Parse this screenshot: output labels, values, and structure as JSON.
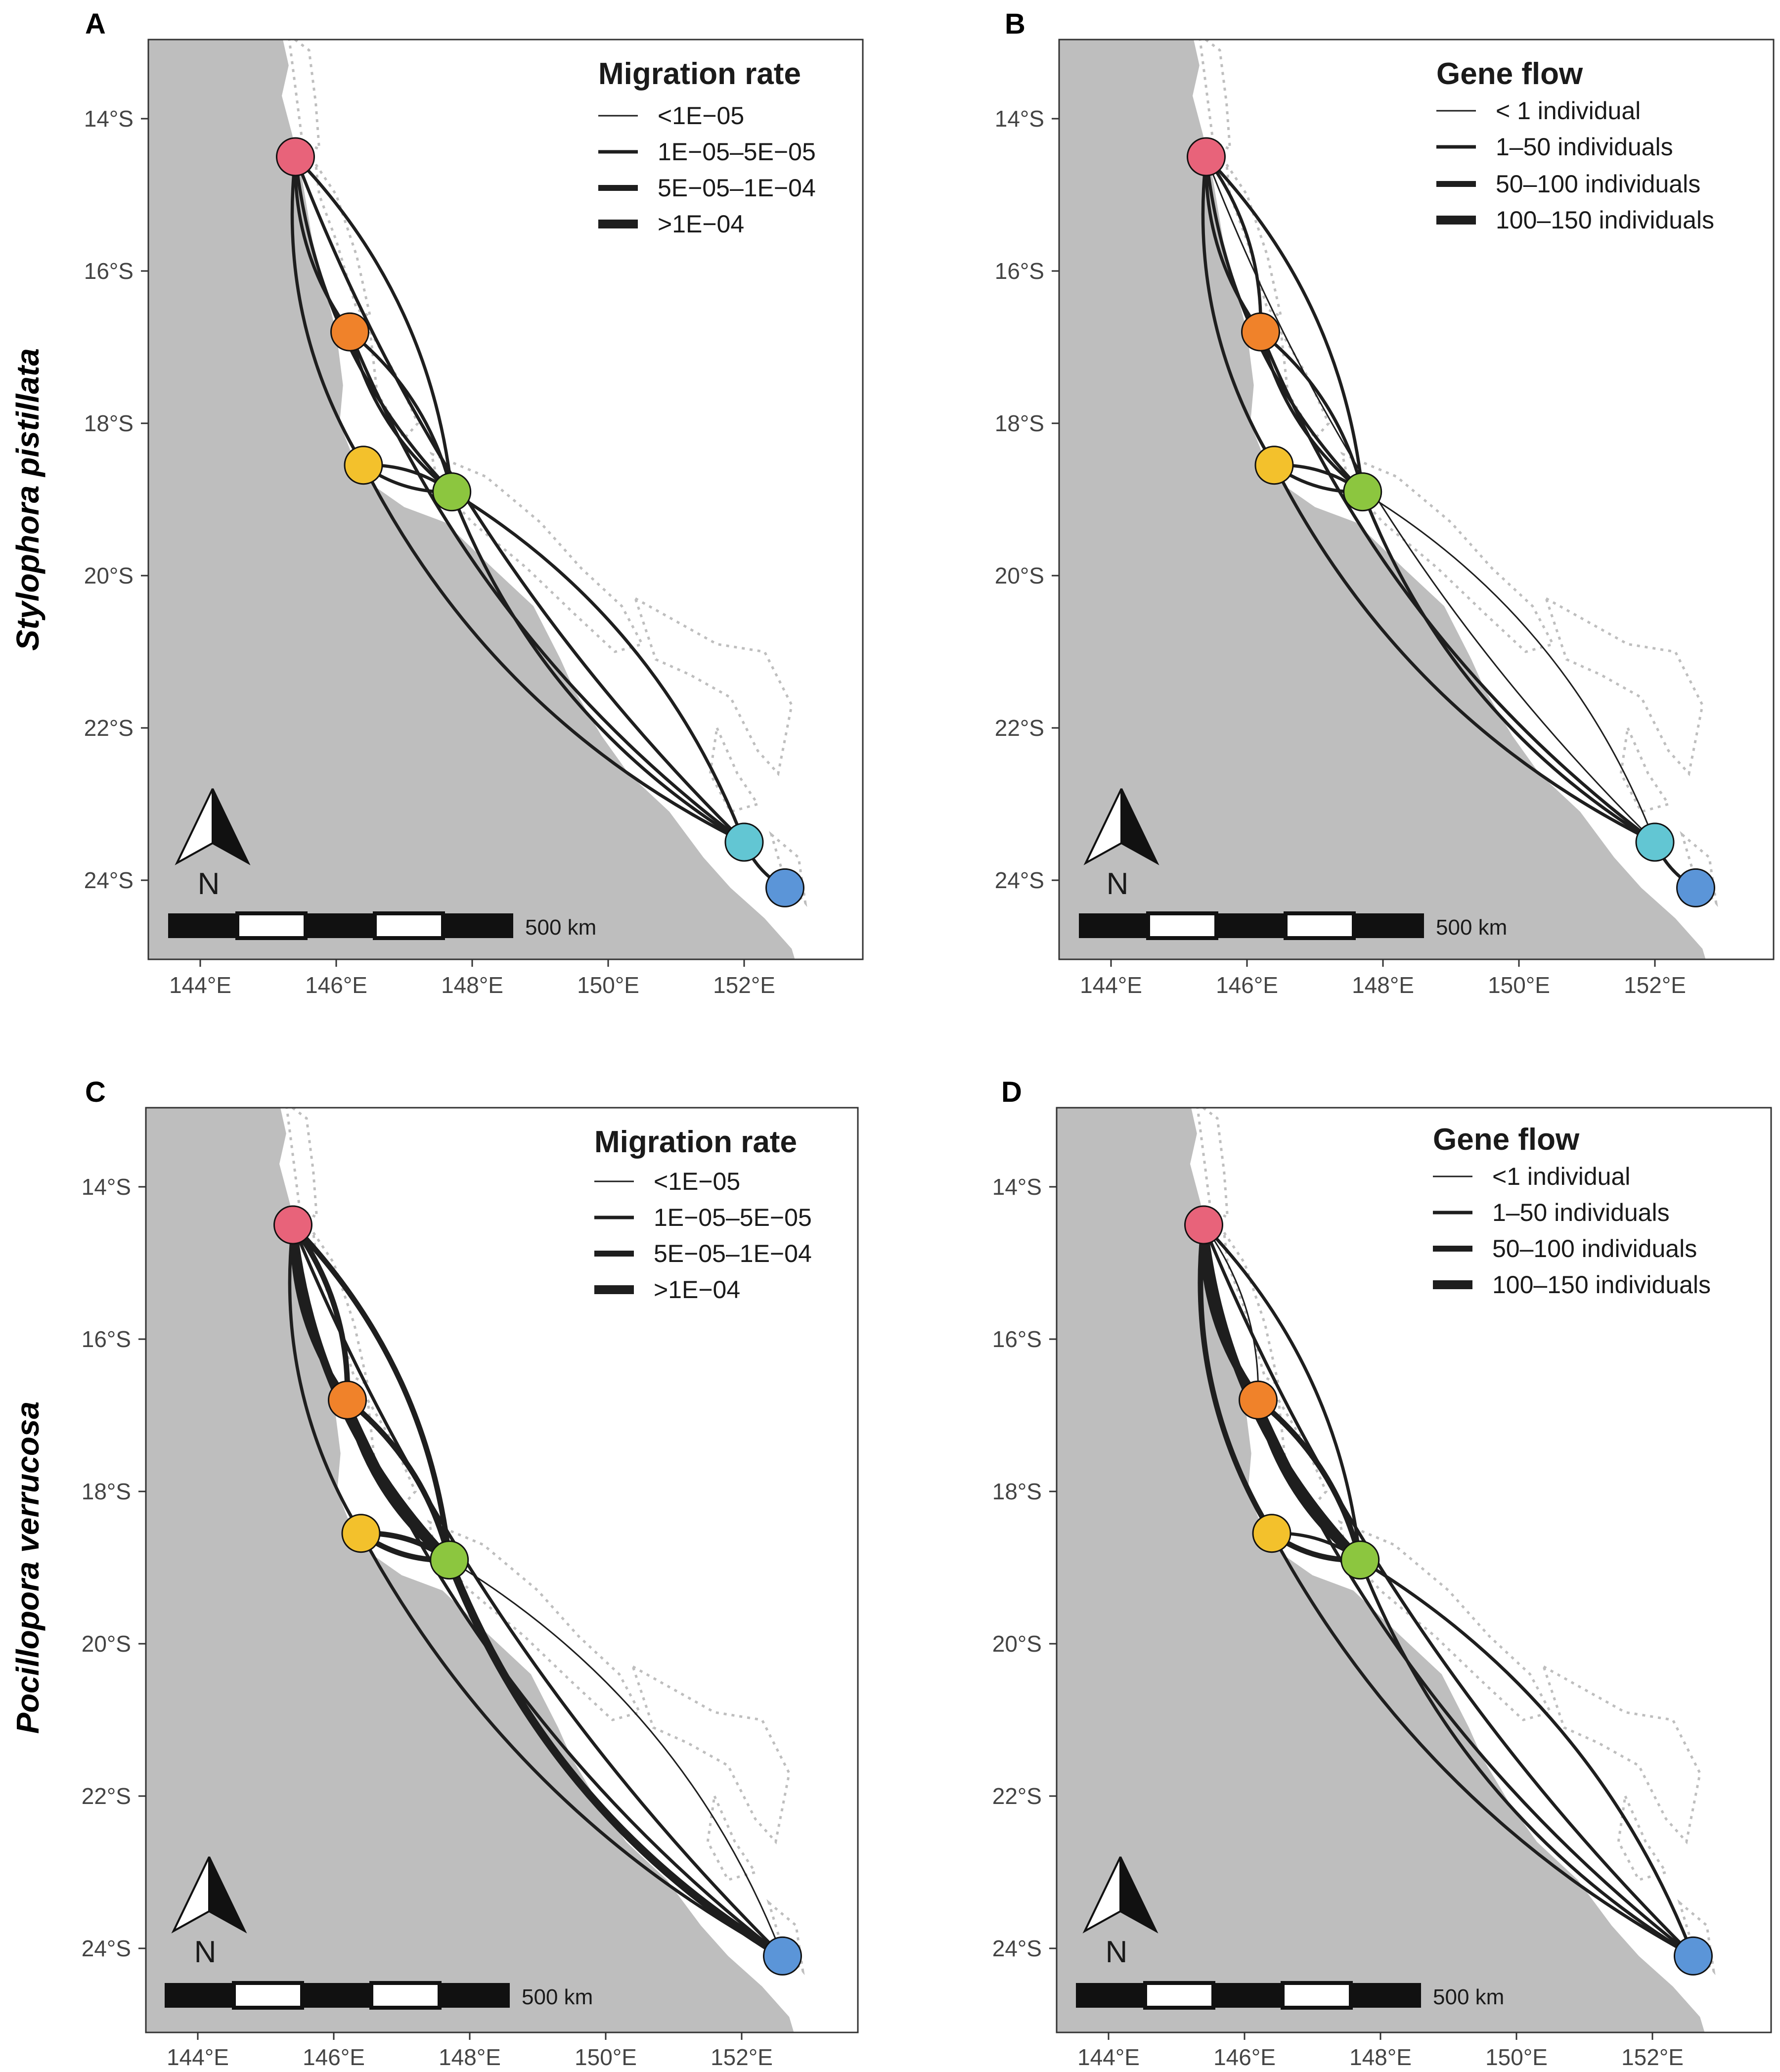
{
  "row_labels": [
    "Stylophora pistillata",
    "Pocillopora verrucosa"
  ],
  "panels": [
    {
      "letter": "A",
      "legend_title": "Migration rate",
      "legend_items": [
        "<1E−05",
        "1E−05–5E−05",
        "5E−05–1E−04",
        ">1E−04"
      ]
    },
    {
      "letter": "B",
      "legend_title": "Gene flow",
      "legend_items": [
        "< 1 individual",
        "1–50 individuals",
        "50–100 individuals",
        "100–150 individuals"
      ]
    },
    {
      "letter": "C",
      "legend_title": "Migration rate",
      "legend_items": [
        "<1E−05",
        "1E−05–5E−05",
        "5E−05–1E−04",
        ">1E−04"
      ]
    },
    {
      "letter": "D",
      "legend_title": "Gene flow",
      "legend_items": [
        "<1 individual",
        "1–50 individuals",
        "50–100 individuals",
        "100–150 individuals"
      ]
    }
  ],
  "x_ticks": [
    "144°E",
    "146°E",
    "148°E",
    "150°E",
    "152°E"
  ],
  "y_ticks": [
    "14°S",
    "16°S",
    "18°S",
    "20°S",
    "22°S",
    "24°S"
  ],
  "scale_label": "500 km",
  "north_label": "N",
  "colors": {
    "land": "#bebebe",
    "reef": "#bebebe",
    "edge": "#1e1e1e"
  },
  "sites": [
    {
      "id": "pink",
      "lon": 145.4,
      "lat": 14.5,
      "color": "#e8637a"
    },
    {
      "id": "orange",
      "lon": 146.2,
      "lat": 16.8,
      "color": "#f0822a"
    },
    {
      "id": "yellow",
      "lon": 146.4,
      "lat": 18.55,
      "color": "#f3c12c"
    },
    {
      "id": "green",
      "lon": 147.7,
      "lat": 18.9,
      "color": "#8cc63f"
    },
    {
      "id": "cyan",
      "lon": 152.0,
      "lat": 23.5,
      "color": "#62c6d3"
    },
    {
      "id": "blue",
      "lon": 152.6,
      "lat": 24.1,
      "color": "#5b95d8"
    }
  ],
  "connections": [
    {
      "panel": "A",
      "pairs": [
        [
          "pink",
          "orange",
          2,
          1
        ],
        [
          "pink",
          "yellow",
          2,
          1
        ],
        [
          "pink",
          "green",
          2,
          1
        ],
        [
          "pink",
          "green",
          2,
          -1
        ],
        [
          "pink",
          "cyan",
          2,
          1
        ],
        [
          "orange",
          "green",
          2,
          1
        ],
        [
          "orange",
          "green",
          2,
          -1
        ],
        [
          "orange",
          "cyan",
          2,
          1
        ],
        [
          "yellow",
          "green",
          2,
          1
        ],
        [
          "yellow",
          "green",
          2,
          -1
        ],
        [
          "yellow",
          "cyan",
          2,
          1
        ],
        [
          "green",
          "cyan",
          2,
          1
        ],
        [
          "green",
          "cyan",
          2,
          -1
        ],
        [
          "cyan",
          "blue",
          2,
          1
        ]
      ]
    },
    {
      "panel": "B",
      "pairs": [
        [
          "pink",
          "orange",
          2,
          1
        ],
        [
          "pink",
          "orange",
          2,
          -1
        ],
        [
          "pink",
          "yellow",
          2,
          1
        ],
        [
          "pink",
          "green",
          2,
          1
        ],
        [
          "pink",
          "green",
          2,
          -1
        ],
        [
          "pink",
          "cyan",
          1,
          1
        ],
        [
          "orange",
          "green",
          2,
          1
        ],
        [
          "orange",
          "green",
          2,
          -1
        ],
        [
          "orange",
          "cyan",
          2,
          1
        ],
        [
          "yellow",
          "green",
          2,
          1
        ],
        [
          "yellow",
          "green",
          2,
          -1
        ],
        [
          "yellow",
          "cyan",
          2,
          1
        ],
        [
          "green",
          "cyan",
          2,
          1
        ],
        [
          "green",
          "cyan",
          1,
          -1
        ],
        [
          "cyan",
          "blue",
          2,
          1
        ]
      ]
    },
    {
      "panel": "C",
      "pairs": [
        [
          "pink",
          "orange",
          3,
          1
        ],
        [
          "pink",
          "orange",
          3,
          -1
        ],
        [
          "pink",
          "yellow",
          2,
          1
        ],
        [
          "pink",
          "green",
          4,
          1
        ],
        [
          "pink",
          "green",
          3,
          -1
        ],
        [
          "pink",
          "blue",
          2,
          1
        ],
        [
          "orange",
          "green",
          4,
          1
        ],
        [
          "orange",
          "green",
          3,
          -1
        ],
        [
          "orange",
          "blue",
          2,
          1
        ],
        [
          "yellow",
          "green",
          3,
          1
        ],
        [
          "yellow",
          "green",
          3,
          -1
        ],
        [
          "yellow",
          "blue",
          2,
          1
        ],
        [
          "green",
          "blue",
          4,
          1
        ],
        [
          "green",
          "blue",
          1,
          -1
        ]
      ]
    },
    {
      "panel": "D",
      "pairs": [
        [
          "pink",
          "orange",
          4,
          1
        ],
        [
          "pink",
          "orange",
          1,
          -1
        ],
        [
          "pink",
          "yellow",
          3,
          1
        ],
        [
          "pink",
          "green",
          4,
          1
        ],
        [
          "pink",
          "green",
          2,
          -1
        ],
        [
          "pink",
          "blue",
          2,
          1
        ],
        [
          "orange",
          "green",
          4,
          1
        ],
        [
          "orange",
          "green",
          3,
          -1
        ],
        [
          "orange",
          "blue",
          2,
          1
        ],
        [
          "yellow",
          "green",
          3,
          1
        ],
        [
          "yellow",
          "green",
          2,
          -1
        ],
        [
          "yellow",
          "blue",
          2,
          1
        ],
        [
          "green",
          "blue",
          2,
          1
        ],
        [
          "green",
          "blue",
          2,
          -1
        ]
      ]
    }
  ]
}
